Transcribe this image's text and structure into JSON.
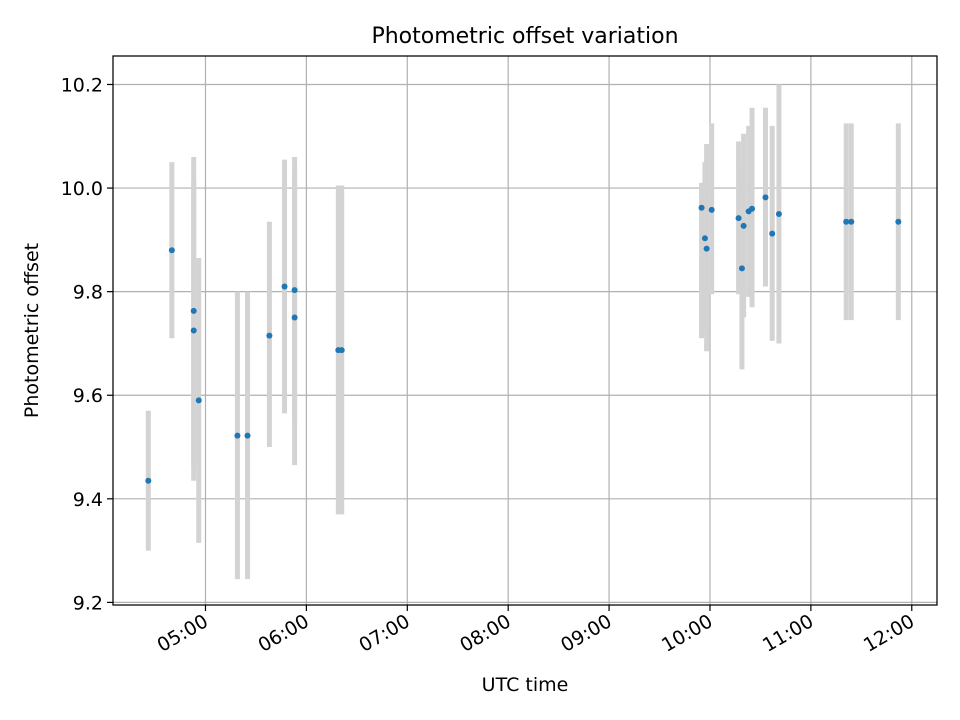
{
  "chart_data": {
    "type": "scatter",
    "title": "Photometric offset variation",
    "xlabel": "UTC time",
    "ylabel": "Photometric offset",
    "x_unit": "UTC time (HH:MM)",
    "xlim": [
      "04:05",
      "12:15"
    ],
    "ylim": [
      9.195,
      10.255
    ],
    "yticks": [
      9.2,
      9.4,
      9.6,
      9.8,
      10.0,
      10.2
    ],
    "ytick_labels": [
      "9.2",
      "9.4",
      "9.6",
      "9.8",
      "10.0",
      "10.2"
    ],
    "xticks": [
      "05:00",
      "06:00",
      "07:00",
      "08:00",
      "09:00",
      "10:00",
      "11:00",
      "12:00"
    ],
    "grid": true,
    "legend": "none",
    "marker_color": "#1f77b4",
    "errorbar_color": "#d3d3d3",
    "series": [
      {
        "points": [
          {
            "x": "04:26",
            "y": 9.435,
            "ylo": 9.3,
            "yhi": 9.57
          },
          {
            "x": "04:40",
            "y": 9.88,
            "ylo": 9.71,
            "yhi": 10.05
          },
          {
            "x": "04:53",
            "y": 9.763,
            "ylo": 9.46,
            "yhi": 10.06
          },
          {
            "x": "04:53",
            "y": 9.725,
            "ylo": 9.435,
            "yhi": 10.015
          },
          {
            "x": "04:56",
            "y": 9.59,
            "ylo": 9.315,
            "yhi": 9.865
          },
          {
            "x": "05:19",
            "y": 9.522,
            "ylo": 9.245,
            "yhi": 9.8
          },
          {
            "x": "05:25",
            "y": 9.522,
            "ylo": 9.245,
            "yhi": 9.8
          },
          {
            "x": "05:38",
            "y": 9.715,
            "ylo": 9.5,
            "yhi": 9.935
          },
          {
            "x": "05:47",
            "y": 9.81,
            "ylo": 9.565,
            "yhi": 10.055
          },
          {
            "x": "05:53",
            "y": 9.803,
            "ylo": 9.55,
            "yhi": 10.06
          },
          {
            "x": "05:53",
            "y": 9.75,
            "ylo": 9.465,
            "yhi": 10.035
          },
          {
            "x": "06:19",
            "y": 9.687,
            "ylo": 9.37,
            "yhi": 10.005
          },
          {
            "x": "06:21",
            "y": 9.687,
            "ylo": 9.37,
            "yhi": 10.005
          },
          {
            "x": "09:55",
            "y": 9.962,
            "ylo": 9.71,
            "yhi": 10.01
          },
          {
            "x": "09:57",
            "y": 9.903,
            "ylo": 9.72,
            "yhi": 10.05
          },
          {
            "x": "09:58",
            "y": 9.883,
            "ylo": 9.685,
            "yhi": 10.085
          },
          {
            "x": "10:01",
            "y": 9.958,
            "ylo": 9.795,
            "yhi": 10.125
          },
          {
            "x": "10:17",
            "y": 9.942,
            "ylo": 9.795,
            "yhi": 10.09
          },
          {
            "x": "10:19",
            "y": 9.845,
            "ylo": 9.65,
            "yhi": 10.04
          },
          {
            "x": "10:20",
            "y": 9.927,
            "ylo": 9.75,
            "yhi": 10.105
          },
          {
            "x": "10:23",
            "y": 9.955,
            "ylo": 9.79,
            "yhi": 10.12
          },
          {
            "x": "10:25",
            "y": 9.96,
            "ylo": 9.77,
            "yhi": 10.155
          },
          {
            "x": "10:33",
            "y": 9.982,
            "ylo": 9.81,
            "yhi": 10.155
          },
          {
            "x": "10:37",
            "y": 9.912,
            "ylo": 9.705,
            "yhi": 10.12
          },
          {
            "x": "10:41",
            "y": 9.95,
            "ylo": 9.7,
            "yhi": 10.2
          },
          {
            "x": "11:21",
            "y": 9.935,
            "ylo": 9.745,
            "yhi": 10.125
          },
          {
            "x": "11:24",
            "y": 9.935,
            "ylo": 9.745,
            "yhi": 10.125
          },
          {
            "x": "11:52",
            "y": 9.935,
            "ylo": 9.745,
            "yhi": 10.125
          }
        ]
      }
    ]
  }
}
